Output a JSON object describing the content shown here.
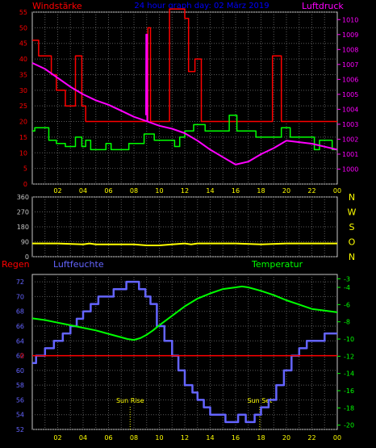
{
  "colors": {
    "background": "#000000",
    "frame": "#c8c8c8",
    "grid": "#5a5a5a",
    "x_tick_label": "#ffff00",
    "windstaerke": "#ff0000",
    "luftdruck": "#ff00ff",
    "title": "#0000ff",
    "wind_speed": "#00ff00",
    "wind_dir": "#ffff00",
    "regen": "#ff0000",
    "luftfeuchte": "#6464ff",
    "temperatur": "#00ff00",
    "sun_marker": "#ffff00"
  },
  "chart_data": [
    {
      "type": "line",
      "title": "24 hour graph day: 02 März 2019",
      "left_axis_label": "Windstärke",
      "right_axis_label": "Luftdruck",
      "x_ticks": [
        "02",
        "04",
        "06",
        "08",
        "10",
        "12",
        "14",
        "16",
        "18",
        "20",
        "22",
        "00"
      ],
      "x_range": [
        0,
        24
      ],
      "y_left_range": [
        0,
        55
      ],
      "y_left_ticks": [
        "0",
        "5",
        "10",
        "15",
        "20",
        "25",
        "30",
        "35",
        "40",
        "45",
        "50",
        "55"
      ],
      "y_right_range": [
        999,
        1010.5
      ],
      "y_right_ticks": [
        "1000",
        "1001",
        "1002",
        "1003",
        "1004",
        "1005",
        "1006",
        "1007",
        "1008",
        "1009",
        "1010"
      ],
      "series": [
        {
          "role": "wind_gust",
          "step": true,
          "axis": "left",
          "x": [
            0,
            0.5,
            1,
            1.5,
            1.9,
            2.6,
            3.4,
            3.9,
            4.2,
            9.1,
            9.3,
            10.8,
            11.8,
            12,
            12.3,
            12.8,
            13.3,
            13.8,
            18.9,
            19.6,
            20
          ],
          "y": [
            46,
            41,
            41,
            35,
            30,
            25,
            41,
            25,
            20,
            50,
            20,
            56,
            56,
            53,
            36,
            40,
            20,
            20,
            41,
            20,
            20
          ]
        },
        {
          "role": "wind_speed",
          "step": true,
          "axis": "left",
          "x": [
            0,
            0.2,
            1.3,
            1.9,
            2.6,
            3.4,
            3.9,
            4.2,
            4.6,
            5.2,
            5.8,
            6.2,
            7,
            7.6,
            8.2,
            8.8,
            9.6,
            10.5,
            11.2,
            11.6,
            12,
            12.7,
            13.6,
            14.9,
            15.5,
            16.1,
            17,
            17.6,
            18.3,
            19,
            19.6,
            20.3,
            21.4,
            22.2,
            22.6,
            23.2,
            23.6
          ],
          "y": [
            17,
            18,
            14,
            13,
            12,
            15,
            12,
            14,
            11,
            11,
            13,
            11,
            11,
            13,
            13,
            16,
            14,
            14,
            12,
            15,
            17,
            19,
            17,
            17,
            22,
            17,
            17,
            15,
            15,
            15,
            18,
            15,
            15,
            11,
            14,
            14,
            11
          ]
        },
        {
          "role": "luftdruck",
          "step": false,
          "axis": "right",
          "x": [
            0,
            1,
            2,
            3,
            4,
            5,
            6,
            7,
            8,
            9,
            10,
            11,
            12,
            13,
            14,
            15,
            16,
            17,
            18,
            19,
            20,
            21,
            22,
            23,
            24
          ],
          "y": [
            1007.1,
            1006.7,
            1006.1,
            1005.5,
            1005.0,
            1004.6,
            1004.3,
            1003.9,
            1003.5,
            1003.2,
            1002.9,
            1002.7,
            1002.4,
            1001.9,
            1001.3,
            1000.8,
            1000.3,
            1000.5,
            1001.0,
            1001.4,
            1001.9,
            1001.8,
            1001.7,
            1001.5,
            1001.3
          ]
        },
        {
          "role": "luftdruck_spike",
          "step": false,
          "axis": "right",
          "x": [
            8.95,
            8.97,
            9.0,
            9.03,
            9.05
          ],
          "y": [
            1003.6,
            1009.0,
            1009.0,
            1009.0,
            1003.2
          ]
        }
      ]
    },
    {
      "type": "line",
      "left_axis_label": "",
      "right_axis_label": "",
      "x_range": [
        0,
        24
      ],
      "y_left_range": [
        0,
        360
      ],
      "y_left_ticks": [
        "0",
        "90",
        "180",
        "270",
        "360"
      ],
      "y_right_ticks": [
        "N",
        "W",
        "S",
        "O",
        "N"
      ],
      "series": [
        {
          "role": "wind_direction",
          "step": false,
          "axis": "left",
          "x": [
            0,
            2,
            4,
            4.5,
            5,
            8,
            9,
            10,
            11,
            12,
            12.5,
            13,
            14,
            16,
            18,
            20,
            22,
            24
          ],
          "y": [
            80,
            80,
            74,
            80,
            74,
            74,
            68,
            68,
            74,
            80,
            74,
            80,
            80,
            80,
            74,
            80,
            80,
            80
          ]
        }
      ]
    },
    {
      "type": "line",
      "left_axis_label": "Regen",
      "middle_axis_label": "Luftfeuchte",
      "right_axis_label": "Temperatur",
      "x_ticks": [
        "02",
        "04",
        "06",
        "08",
        "10",
        "12",
        "14",
        "16",
        "18",
        "20",
        "22",
        "00"
      ],
      "x_range": [
        0,
        24
      ],
      "y_left_range": [
        52,
        73
      ],
      "y_left_ticks": [
        "52",
        "54",
        "56",
        "58",
        "60",
        "62",
        "64",
        "66",
        "68",
        "70",
        "72"
      ],
      "y_right_range": [
        -20.5,
        -2.5
      ],
      "y_right_ticks": [
        "-3",
        "-4",
        "-6",
        "-8",
        "-10",
        "-12",
        "-14",
        "-16",
        "-18",
        "-20"
      ],
      "rain_zero_label": "0",
      "annotations": [
        {
          "text": "Sun Rise",
          "x": 7.7
        },
        {
          "text": "Sun Set",
          "x": 17.9
        }
      ],
      "series": [
        {
          "role": "luftfeuchte",
          "step": true,
          "axis": "left",
          "x": [
            0,
            0.3,
            1,
            1.7,
            2.4,
            3,
            3.5,
            4,
            4.6,
            5.2,
            5.8,
            6.4,
            7,
            7.4,
            8.4,
            8.9,
            9.3,
            9.8,
            10.4,
            11,
            11.5,
            12,
            12.6,
            13,
            13.5,
            14,
            14.6,
            15.2,
            15.7,
            16.2,
            16.8,
            17.5,
            18,
            18.6,
            19.2,
            19.8,
            20.4,
            21,
            21.6,
            22.2,
            23
          ],
          "y": [
            61,
            62,
            63,
            64,
            65,
            66,
            67,
            68,
            69,
            70,
            70,
            71,
            71,
            72,
            71,
            70,
            69,
            66,
            64,
            62,
            60,
            58,
            57,
            56,
            55,
            54,
            54,
            53,
            53,
            54,
            53,
            54,
            55,
            56,
            58,
            60,
            62,
            63,
            64,
            64,
            65
          ]
        },
        {
          "role": "temperatur",
          "step": false,
          "axis": "right",
          "x": [
            0,
            1,
            2,
            3,
            4,
            5,
            6,
            7,
            7.5,
            8,
            8.5,
            9,
            9.5,
            10,
            11,
            12,
            13,
            14,
            15,
            16,
            16.5,
            17,
            18,
            19,
            20,
            21,
            22,
            23,
            24
          ],
          "y": [
            -7.6,
            -7.8,
            -8.1,
            -8.4,
            -8.7,
            -9.0,
            -9.4,
            -9.8,
            -10.0,
            -10.1,
            -9.9,
            -9.5,
            -9.0,
            -8.4,
            -7.3,
            -6.2,
            -5.3,
            -4.7,
            -4.2,
            -4.0,
            -3.9,
            -4.0,
            -4.4,
            -4.9,
            -5.5,
            -6.0,
            -6.5,
            -6.7,
            -6.9
          ]
        },
        {
          "role": "regen",
          "step": false,
          "axis": "rain",
          "x": [
            0,
            24
          ],
          "y": [
            0,
            0
          ]
        }
      ]
    }
  ]
}
